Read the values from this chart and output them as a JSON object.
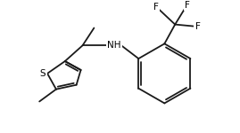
{
  "bg_color": "#ffffff",
  "line_color": "#1a1a1a",
  "text_color": "#000000",
  "F_color": "#000000",
  "label_NH": "NH",
  "label_S": "S",
  "label_F": "F",
  "line_width": 1.3,
  "font_size": 7.5,
  "figsize": [
    2.69,
    1.5
  ],
  "dpi": 100
}
